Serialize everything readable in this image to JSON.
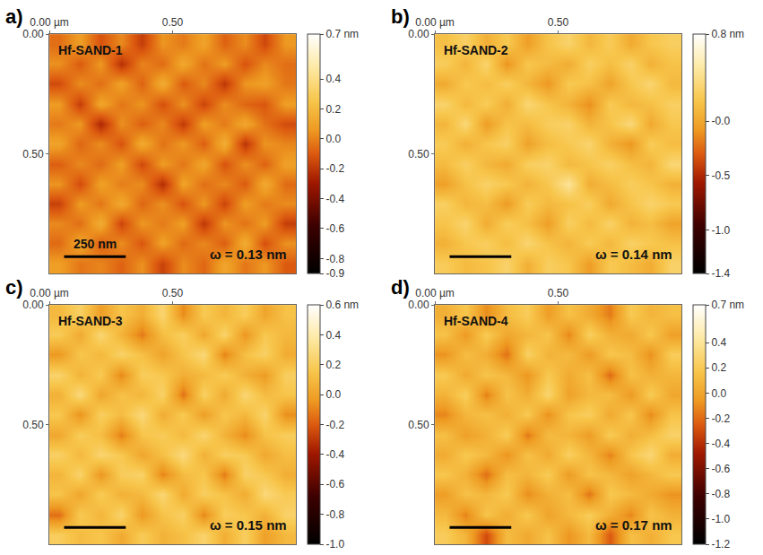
{
  "chart_data": [
    {
      "type": "heatmap",
      "panel": "a)",
      "title": "Hf-SAND-1",
      "annotation": "ω = 0.13 nm",
      "scale_bar_length": 0.25,
      "scale_bar_label": "250 nm",
      "xlim": [
        0,
        1
      ],
      "xticks": [
        {
          "value": 0,
          "label": "0.00 µm"
        },
        {
          "value": 0.5,
          "label": "0.50"
        }
      ],
      "ylim": [
        1,
        0
      ],
      "yticks": [
        {
          "value": 0,
          "label": "0.00"
        },
        {
          "value": 0.5,
          "label": "0.50"
        }
      ],
      "colorbar_range": [
        -0.9,
        0.7
      ],
      "colorbar_ticks": [
        {
          "value": 0.7,
          "label": "0.7 nm"
        },
        0.4,
        0.2,
        {
          "value": 0,
          "label": "0.0"
        },
        -0.2,
        -0.4,
        -0.6,
        -0.8,
        -0.9
      ],
      "x": [
        0.042,
        0.125,
        0.208,
        0.292,
        0.375,
        0.458,
        0.542,
        0.625,
        0.708,
        0.792,
        0.875,
        0.958
      ],
      "y": [
        0.042,
        0.125,
        0.208,
        0.292,
        0.375,
        0.458,
        0.542,
        0.625,
        0.708,
        0.792,
        0.875,
        0.958
      ],
      "z": [
        [
          -0.05,
          0.08,
          -0.12,
          0.02,
          -0.18,
          0.05,
          -0.02,
          0.1,
          -0.08,
          0.03,
          -0.15,
          0.06
        ],
        [
          0.04,
          -0.1,
          0.06,
          -0.22,
          0.01,
          -0.06,
          0.12,
          -0.04,
          0.07,
          -0.12,
          0.02,
          -0.05
        ],
        [
          -0.14,
          0.03,
          -0.05,
          0.09,
          -0.08,
          0.14,
          -0.1,
          0.02,
          -0.2,
          0.05,
          0.09,
          -0.03
        ],
        [
          0.07,
          -0.18,
          0.11,
          -0.03,
          0.05,
          -0.13,
          0.04,
          -0.16,
          0.03,
          -0.07,
          -0.11,
          0.08
        ],
        [
          -0.02,
          0.06,
          -0.25,
          0.04,
          -0.09,
          0.02,
          -0.19,
          0.08,
          -0.02,
          0.12,
          -0.04,
          -0.14
        ],
        [
          0.1,
          -0.07,
          0.03,
          -0.12,
          0.13,
          -0.04,
          0.06,
          -0.09,
          0.15,
          -0.21,
          0.05,
          0.01
        ],
        [
          -0.09,
          0.02,
          -0.06,
          0.08,
          -0.15,
          0.07,
          -0.03,
          0.11,
          -0.12,
          0.04,
          -0.08,
          0.09
        ],
        [
          0.05,
          -0.14,
          0.09,
          -0.01,
          0.03,
          -0.23,
          0.1,
          -0.05,
          0.02,
          -0.1,
          0.13,
          -0.06
        ],
        [
          -0.17,
          0.07,
          -0.03,
          0.12,
          -0.07,
          0.04,
          -0.12,
          0.06,
          -0.16,
          0.08,
          -0.02,
          0.03
        ],
        [
          0.02,
          -0.05,
          0.14,
          -0.16,
          0.06,
          -0.02,
          0.08,
          -0.2,
          0.05,
          -0.04,
          0.07,
          -0.18
        ],
        [
          -0.06,
          0.11,
          -0.09,
          0.03,
          -0.11,
          0.09,
          -0.06,
          0.02,
          -0.09,
          0.14,
          -0.13,
          0.04
        ],
        [
          0.08,
          -0.03,
          0.01,
          -0.08,
          0.04,
          -0.17,
          0.03,
          -0.07,
          0.11,
          -0.03,
          0.06,
          -0.1
        ]
      ]
    },
    {
      "type": "heatmap",
      "panel": "b)",
      "title": "Hf-SAND-2",
      "annotation": "ω = 0.14 nm",
      "scale_bar_length": 0.25,
      "xlim": [
        0,
        1
      ],
      "xticks": [
        {
          "value": 0,
          "label": "0.00 µm"
        },
        {
          "value": 0.5,
          "label": "0.50"
        }
      ],
      "ylim": [
        1,
        0
      ],
      "yticks": [
        {
          "value": 0,
          "label": "0.00"
        },
        {
          "value": 0.5,
          "label": "0.50"
        }
      ],
      "colorbar_range": [
        -1.4,
        0.8
      ],
      "colorbar_ticks": [
        {
          "value": 0.8,
          "label": "0.8 nm"
        },
        {
          "value": 0,
          "label": "-0.0"
        },
        -0.5,
        {
          "value": -1,
          "label": "-1.0"
        },
        -1.4
      ],
      "x": [
        0.042,
        0.125,
        0.208,
        0.292,
        0.375,
        0.458,
        0.542,
        0.625,
        0.708,
        0.792,
        0.875,
        0.958
      ],
      "y": [
        0.042,
        0.125,
        0.208,
        0.292,
        0.375,
        0.458,
        0.542,
        0.625,
        0.708,
        0.792,
        0.875,
        0.958
      ],
      "z": [
        [
          0.15,
          0.28,
          0.05,
          0.22,
          -0.05,
          0.18,
          0.3,
          0.1,
          0.24,
          0.02,
          0.19,
          0.26
        ],
        [
          0.25,
          0.08,
          0.31,
          -0.1,
          0.2,
          0.12,
          0.03,
          0.27,
          0.14,
          0.29,
          0.06,
          0.17
        ],
        [
          0.02,
          0.21,
          0.13,
          0.26,
          0.09,
          -0.08,
          0.22,
          0.16,
          -0.02,
          0.2,
          0.32,
          0.11
        ],
        [
          0.3,
          0.11,
          0.24,
          0.04,
          0.33,
          0.19,
          0.07,
          -0.12,
          0.23,
          0.1,
          0.15,
          0.27
        ],
        [
          0.09,
          0.34,
          -0.06,
          0.18,
          0.12,
          0.25,
          0.29,
          0.08,
          0.17,
          0.35,
          0.01,
          0.2
        ],
        [
          0.23,
          0.05,
          0.19,
          0.28,
          -0.03,
          0.14,
          0.21,
          0.31,
          0.06,
          -0.09,
          0.24,
          0.13
        ],
        [
          0.12,
          0.27,
          0.1,
          0.02,
          0.26,
          0.3,
          0.11,
          0.18,
          0.28,
          0.15,
          0.08,
          0.33
        ],
        [
          -0.04,
          0.16,
          0.29,
          0.21,
          0.07,
          0.2,
          0.45,
          0.04,
          0.13,
          0.25,
          0.19,
          0.06
        ],
        [
          0.27,
          0.09,
          0.14,
          -0.07,
          0.24,
          0.11,
          0.16,
          0.26,
          0.01,
          0.18,
          0.3,
          0.22
        ],
        [
          0.18,
          0.31,
          0.03,
          0.25,
          0.15,
          -0.05,
          0.27,
          0.12,
          0.29,
          0.07,
          0.14,
          -0.02
        ],
        [
          0.06,
          0.2,
          0.26,
          0.13,
          0.32,
          0.17,
          0.08,
          0.23,
          0.1,
          0.28,
          0.21,
          0.16
        ],
        [
          0.24,
          0.12,
          0.17,
          0.3,
          0.05,
          0.26,
          0.19,
          -0.06,
          0.22,
          0.13,
          0.03,
          0.29
        ]
      ]
    },
    {
      "type": "heatmap",
      "panel": "c)",
      "title": "Hf-SAND-3",
      "annotation": "ω = 0.15 nm",
      "scale_bar_length": 0.25,
      "xlim": [
        0,
        1
      ],
      "xticks": [
        {
          "value": 0,
          "label": "0.00 µm"
        },
        {
          "value": 0.5,
          "label": "0.50"
        }
      ],
      "ylim": [
        1,
        0
      ],
      "yticks": [
        {
          "value": 0,
          "label": "0.00"
        },
        {
          "value": 0.5,
          "label": "0.50"
        }
      ],
      "colorbar_range": [
        -1.0,
        0.6
      ],
      "colorbar_ticks": [
        {
          "value": 0.6,
          "label": "0.6 nm"
        },
        0.4,
        0.2,
        {
          "value": 0,
          "label": "0.0"
        },
        -0.2,
        -0.4,
        -0.6,
        -0.8,
        {
          "value": -1,
          "label": "-1.0"
        }
      ],
      "x": [
        0.042,
        0.125,
        0.208,
        0.292,
        0.375,
        0.458,
        0.542,
        0.625,
        0.708,
        0.792,
        0.875,
        0.958
      ],
      "y": [
        0.042,
        0.125,
        0.208,
        0.292,
        0.375,
        0.458,
        0.542,
        0.625,
        0.708,
        0.792,
        0.875,
        0.958
      ],
      "z": [
        [
          0.1,
          0.22,
          -0.02,
          0.15,
          0.05,
          0.25,
          -0.08,
          0.18,
          0.08,
          0.2,
          0.01,
          0.14
        ],
        [
          0.19,
          0.03,
          0.26,
          0.07,
          -0.12,
          0.12,
          0.21,
          0.02,
          0.24,
          -0.05,
          0.17,
          0.09
        ],
        [
          -0.04,
          0.16,
          0.09,
          0.23,
          0.13,
          0.0,
          0.15,
          0.27,
          -0.1,
          0.13,
          0.22,
          0.04
        ],
        [
          0.24,
          0.07,
          0.18,
          -0.09,
          0.2,
          0.17,
          0.05,
          0.1,
          0.19,
          0.06,
          -0.03,
          0.21
        ],
        [
          0.06,
          0.28,
          0.01,
          0.14,
          0.08,
          0.23,
          -0.14,
          0.22,
          0.03,
          0.26,
          0.11,
          0.15
        ],
        [
          0.17,
          -0.06,
          0.21,
          0.11,
          0.27,
          0.04,
          0.18,
          -0.02,
          0.16,
          0.09,
          0.24,
          -0.07
        ],
        [
          0.02,
          0.2,
          0.12,
          -0.11,
          0.15,
          0.19,
          0.1,
          0.25,
          0.07,
          -0.08,
          0.14,
          0.2
        ],
        [
          0.22,
          0.09,
          0.25,
          0.17,
          0.01,
          0.13,
          0.28,
          0.06,
          0.21,
          0.18,
          0.02,
          0.12
        ],
        [
          0.08,
          0.24,
          -0.05,
          0.2,
          0.23,
          -0.1,
          0.11,
          0.16,
          -0.12,
          0.23,
          0.17,
          0.05
        ],
        [
          0.15,
          0.01,
          0.19,
          0.06,
          0.1,
          0.26,
          0.03,
          0.21,
          0.14,
          0.04,
          0.27,
          0.18
        ],
        [
          -0.15,
          0.18,
          0.08,
          0.24,
          -0.04,
          0.14,
          0.22,
          -0.09,
          0.2,
          0.16,
          0.06,
          0.23
        ],
        [
          0.2,
          0.11,
          0.16,
          0.03,
          0.19,
          0.07,
          0.13,
          0.24,
          0.05,
          0.21,
          -0.01,
          0.1
        ]
      ]
    },
    {
      "type": "heatmap",
      "panel": "d)",
      "title": "Hf-SAND-4",
      "annotation": "ω = 0.17 nm",
      "scale_bar_length": 0.25,
      "xlim": [
        0,
        1
      ],
      "xticks": [
        {
          "value": 0,
          "label": "0.00 µm"
        },
        {
          "value": 0.5,
          "label": "0.50"
        }
      ],
      "ylim": [
        1,
        0
      ],
      "yticks": [
        {
          "value": 0,
          "label": "0.00"
        },
        {
          "value": 0.5,
          "label": "0.50"
        }
      ],
      "colorbar_range": [
        -1.2,
        0.7
      ],
      "colorbar_ticks": [
        {
          "value": 0.7,
          "label": "0.7 nm"
        },
        0.4,
        0.2,
        {
          "value": 0,
          "label": "0.0"
        },
        -0.2,
        -0.4,
        -0.6,
        -0.8,
        {
          "value": -1,
          "label": "-1.0"
        },
        -1.2
      ],
      "x": [
        0.042,
        0.125,
        0.208,
        0.292,
        0.375,
        0.458,
        0.542,
        0.625,
        0.708,
        0.792,
        0.875,
        0.958
      ],
      "y": [
        0.042,
        0.125,
        0.208,
        0.292,
        0.375,
        0.458,
        0.542,
        0.625,
        0.708,
        0.792,
        0.875,
        0.958
      ],
      "z": [
        [
          0.05,
          0.18,
          -0.1,
          0.12,
          0.22,
          -0.04,
          0.15,
          0.03,
          -0.15,
          0.2,
          0.08,
          0.14
        ],
        [
          0.16,
          -0.06,
          0.21,
          0.01,
          0.09,
          0.17,
          -0.12,
          0.24,
          0.06,
          0.02,
          0.19,
          -0.03
        ],
        [
          -0.08,
          0.13,
          0.04,
          -0.18,
          0.25,
          0.07,
          0.11,
          -0.05,
          0.18,
          0.12,
          -0.09,
          0.22
        ],
        [
          0.2,
          0.02,
          0.17,
          0.1,
          -0.07,
          0.19,
          0.03,
          0.14,
          -0.2,
          0.15,
          0.06,
          0.09
        ],
        [
          0.07,
          0.23,
          -0.14,
          0.16,
          0.04,
          0.28,
          -0.02,
          0.1,
          0.13,
          -0.06,
          0.21,
          0.01
        ],
        [
          -0.12,
          0.09,
          0.14,
          0.05,
          0.2,
          -0.09,
          0.17,
          0.23,
          0.02,
          0.18,
          -0.11,
          0.16
        ],
        [
          0.14,
          -0.03,
          0.06,
          0.22,
          -0.16,
          0.12,
          0.08,
          -0.04,
          0.21,
          0.05,
          0.13,
          0.26
        ],
        [
          0.03,
          0.19,
          0.11,
          -0.08,
          0.15,
          0.02,
          0.24,
          0.09,
          -0.13,
          0.17,
          0.3,
          0.04
        ],
        [
          0.18,
          0.06,
          -0.19,
          0.13,
          0.08,
          0.21,
          -0.05,
          0.16,
          0.1,
          -0.02,
          0.09,
          0.2
        ],
        [
          -0.04,
          0.15,
          0.09,
          0.2,
          -0.1,
          0.06,
          0.13,
          -0.17,
          0.19,
          0.11,
          0.03,
          -0.08
        ],
        [
          0.11,
          -0.13,
          0.17,
          0.04,
          0.19,
          -0.01,
          0.1,
          0.22,
          0.05,
          -0.12,
          0.16,
          0.07
        ],
        [
          0.22,
          0.08,
          -0.3,
          0.12,
          0.02,
          0.16,
          -0.07,
          0.11,
          -0.25,
          0.14,
          0.05,
          0.18
        ]
      ]
    }
  ]
}
